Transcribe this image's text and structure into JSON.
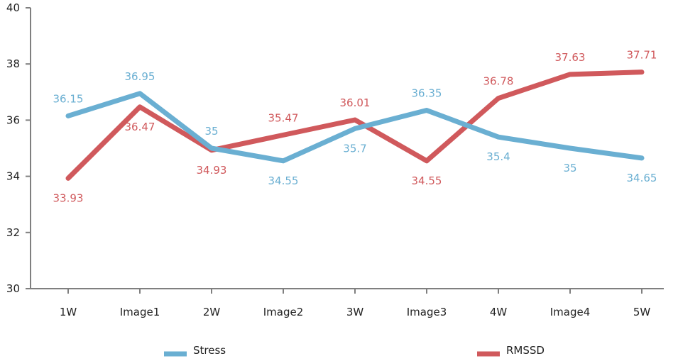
{
  "chart_data": {
    "type": "line",
    "categories": [
      "1W",
      "Image1",
      "2W",
      "Image2",
      "3W",
      "Image3",
      "4W",
      "Image4",
      "5W"
    ],
    "ylim": [
      30,
      40
    ],
    "yticks": [
      30,
      32,
      34,
      36,
      38,
      40
    ],
    "grid": false,
    "legend_position": "bottom",
    "series": [
      {
        "name": "Stress",
        "color": "#6aafd2",
        "values": [
          36.15,
          36.95,
          35,
          34.55,
          35.7,
          36.35,
          35.4,
          35,
          34.65
        ],
        "labels": [
          "36.15",
          "36.95",
          "35",
          "34.55",
          "35.7",
          "36.35",
          "35.4",
          "35",
          "34.65"
        ]
      },
      {
        "name": "RMSSD",
        "color": "#d0595c",
        "values": [
          33.93,
          36.47,
          34.93,
          35.47,
          36.01,
          34.55,
          36.78,
          37.63,
          37.71
        ],
        "labels": [
          "33.93",
          "36.47",
          "34.93",
          "35.47",
          "36.01",
          "34.55",
          "36.78",
          "37.63",
          "37.71"
        ]
      }
    ]
  }
}
